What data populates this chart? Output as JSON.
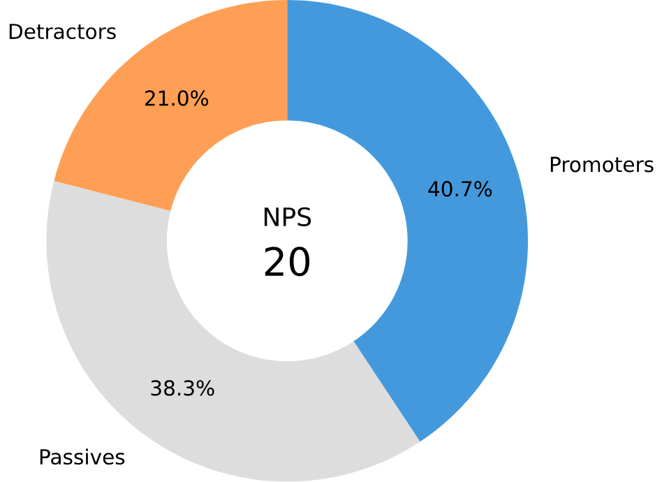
{
  "chart_data": {
    "type": "donut",
    "categories": [
      "Promoters",
      "Passives",
      "Detractors"
    ],
    "values": [
      40.7,
      38.3,
      21.0
    ],
    "colors": [
      "#4499dd",
      "#dddddd",
      "#ff9f55"
    ],
    "value_labels": [
      "40.7%",
      "38.3%",
      "21.0%"
    ],
    "annotations": [
      "NPS",
      "20"
    ]
  }
}
